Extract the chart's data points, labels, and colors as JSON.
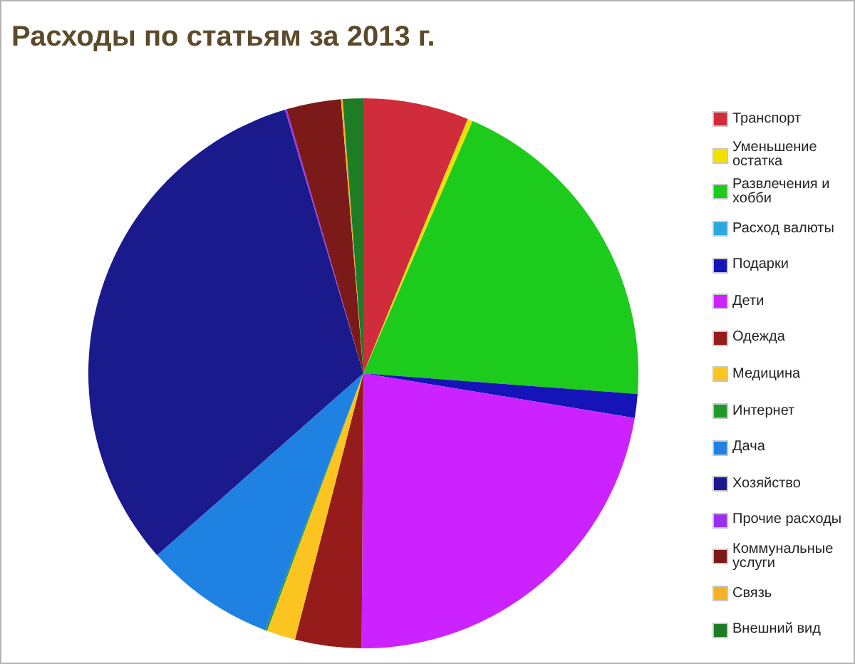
{
  "chart_data": {
    "type": "pie",
    "title": "Расходы по статьям за 2013 г.",
    "categories": [
      "Транспорт",
      "Уменьшение остатка",
      "Развлечения и хобби",
      "Расход валюты",
      "Подарки",
      "Дети",
      "Одежда",
      "Медицина",
      "Интернет",
      "Дача",
      "Хозяйство",
      "Прочие расходы",
      "Коммунальные услуги",
      "Связь",
      "Внешний вид"
    ],
    "values": [
      6.2,
      0.3,
      19.7,
      0,
      1.4,
      22.5,
      3.9,
      1.7,
      0.1,
      7.7,
      31.9,
      0.1,
      3.2,
      0.1,
      1.2
    ],
    "colors": [
      "#d12c3b",
      "#f4e000",
      "#1ccb1c",
      "#2aa8e0",
      "#1414b8",
      "#cc22ff",
      "#961c1c",
      "#fcc421",
      "#1f9a2a",
      "#1f82e2",
      "#1a1a8c",
      "#9a30ee",
      "#7c1a1a",
      "#f8b024",
      "#1e7c24"
    ],
    "legend": "right"
  }
}
